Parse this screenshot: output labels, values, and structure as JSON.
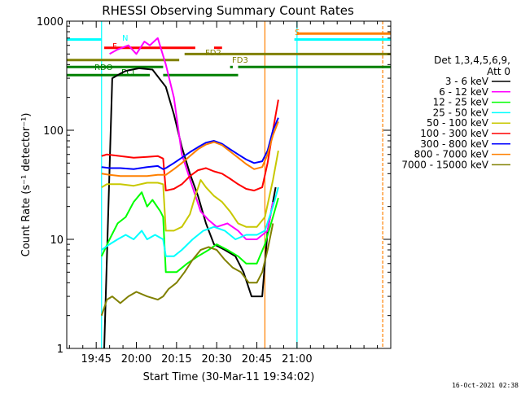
{
  "chart_data": {
    "type": "line",
    "title": "RHESSI Observing Summary Count Rates",
    "xlabel": "Start Time (30-Mar-11 19:34:02)",
    "ylabel": "Count Rate (s⁻¹ detector⁻¹)",
    "y_scale": "log",
    "ylim": [
      1,
      1000
    ],
    "xlim_minutes": [
      0,
      121
    ],
    "x_ticks": [
      {
        "label": "19:45",
        "minute": 11
      },
      {
        "label": "20:00",
        "minute": 26
      },
      {
        "label": "20:15",
        "minute": 41
      },
      {
        "label": "20:30",
        "minute": 56
      },
      {
        "label": "20:45",
        "minute": 71
      },
      {
        "label": "21:00",
        "minute": 86
      }
    ],
    "y_ticks": [
      {
        "label": "1",
        "value": 1
      },
      {
        "label": "10",
        "value": 10
      },
      {
        "label": "100",
        "value": 100
      },
      {
        "label": "1000",
        "value": 1000
      }
    ],
    "legend_header": [
      "Det 1,3,4,5,6,9,",
      "Att 0"
    ],
    "legend_position": "right",
    "grid": false,
    "series": [
      {
        "name": "3 - 6 keV",
        "color": "#000000",
        "points": [
          [
            14,
            1
          ],
          [
            17,
            300
          ],
          [
            20,
            330
          ],
          [
            22,
            350
          ],
          [
            27,
            370
          ],
          [
            32,
            360
          ],
          [
            37,
            250
          ],
          [
            40,
            140
          ],
          [
            43,
            70
          ],
          [
            46,
            40
          ],
          [
            49,
            25
          ],
          [
            52,
            14
          ],
          [
            55,
            9
          ],
          [
            59,
            8
          ],
          [
            63,
            7
          ],
          [
            66,
            5
          ],
          [
            69,
            3
          ],
          [
            73,
            3
          ],
          [
            75,
            12
          ],
          [
            78,
            30
          ]
        ]
      },
      {
        "name": "6 - 12 keV",
        "color": "#ff00ff",
        "points": [
          [
            16,
            500
          ],
          [
            19,
            550
          ],
          [
            23,
            600
          ],
          [
            26,
            500
          ],
          [
            29,
            650
          ],
          [
            31,
            600
          ],
          [
            34,
            700
          ],
          [
            37,
            400
          ],
          [
            40,
            200
          ],
          [
            43,
            60
          ],
          [
            47,
            30
          ],
          [
            50,
            18
          ],
          [
            53,
            15
          ],
          [
            56,
            13
          ],
          [
            60,
            14
          ],
          [
            64,
            12
          ],
          [
            67,
            10
          ],
          [
            71,
            10
          ],
          [
            75,
            12
          ],
          [
            77,
            22
          ]
        ]
      },
      {
        "name": "12 - 25 keV",
        "color": "#00ff00",
        "points": [
          [
            13,
            7
          ],
          [
            16,
            10
          ],
          [
            19,
            14
          ],
          [
            22,
            16
          ],
          [
            25,
            22
          ],
          [
            28,
            27
          ],
          [
            30,
            20
          ],
          [
            32,
            23
          ],
          [
            35,
            18
          ],
          [
            36,
            16
          ],
          [
            37,
            5
          ],
          [
            41,
            5
          ],
          [
            45,
            6
          ],
          [
            49,
            7
          ],
          [
            53,
            8
          ],
          [
            56,
            9
          ],
          [
            60,
            8
          ],
          [
            64,
            7
          ],
          [
            67,
            6
          ],
          [
            71,
            6
          ],
          [
            74,
            9
          ],
          [
            77,
            16
          ],
          [
            79,
            24
          ]
        ]
      },
      {
        "name": "25 - 50 keV",
        "color": "#00ffff",
        "points": [
          [
            13,
            8
          ],
          [
            16,
            9
          ],
          [
            19,
            10
          ],
          [
            22,
            11
          ],
          [
            25,
            10
          ],
          [
            28,
            12
          ],
          [
            30,
            10
          ],
          [
            33,
            11
          ],
          [
            36,
            10
          ],
          [
            37,
            7
          ],
          [
            40,
            7
          ],
          [
            43,
            8
          ],
          [
            47,
            10
          ],
          [
            51,
            12
          ],
          [
            55,
            13
          ],
          [
            59,
            12
          ],
          [
            63,
            10
          ],
          [
            67,
            11
          ],
          [
            71,
            11
          ],
          [
            74,
            12
          ],
          [
            77,
            20
          ],
          [
            79,
            30
          ]
        ]
      },
      {
        "name": "50 - 100 keV",
        "color": "#c8c800",
        "points": [
          [
            13,
            30
          ],
          [
            15,
            32
          ],
          [
            20,
            32
          ],
          [
            25,
            31
          ],
          [
            30,
            33
          ],
          [
            34,
            33
          ],
          [
            36,
            32
          ],
          [
            37,
            12
          ],
          [
            40,
            12
          ],
          [
            43,
            13
          ],
          [
            46,
            17
          ],
          [
            48,
            25
          ],
          [
            50,
            35
          ],
          [
            52,
            30
          ],
          [
            55,
            25
          ],
          [
            58,
            22
          ],
          [
            61,
            18
          ],
          [
            64,
            14
          ],
          [
            67,
            13
          ],
          [
            71,
            13
          ],
          [
            74,
            16
          ],
          [
            77,
            35
          ],
          [
            79,
            65
          ]
        ]
      },
      {
        "name": "100 - 300 keV",
        "color": "#ff0000",
        "points": [
          [
            13,
            58
          ],
          [
            15,
            60
          ],
          [
            20,
            58
          ],
          [
            25,
            56
          ],
          [
            30,
            57
          ],
          [
            34,
            58
          ],
          [
            36,
            55
          ],
          [
            37,
            28
          ],
          [
            40,
            29
          ],
          [
            43,
            32
          ],
          [
            46,
            38
          ],
          [
            49,
            43
          ],
          [
            52,
            45
          ],
          [
            55,
            42
          ],
          [
            58,
            40
          ],
          [
            61,
            36
          ],
          [
            64,
            32
          ],
          [
            67,
            29
          ],
          [
            70,
            28
          ],
          [
            73,
            30
          ],
          [
            75,
            50
          ],
          [
            77,
            100
          ],
          [
            79,
            190
          ]
        ]
      },
      {
        "name": "300 - 800 keV",
        "color": "#0000ff",
        "points": [
          [
            13,
            46
          ],
          [
            16,
            45
          ],
          [
            20,
            45
          ],
          [
            25,
            44
          ],
          [
            30,
            46
          ],
          [
            34,
            47
          ],
          [
            36,
            44
          ],
          [
            37,
            45
          ],
          [
            40,
            50
          ],
          [
            43,
            56
          ],
          [
            46,
            63
          ],
          [
            49,
            70
          ],
          [
            52,
            77
          ],
          [
            55,
            80
          ],
          [
            58,
            75
          ],
          [
            61,
            67
          ],
          [
            64,
            60
          ],
          [
            67,
            54
          ],
          [
            70,
            50
          ],
          [
            73,
            52
          ],
          [
            75,
            65
          ],
          [
            77,
            100
          ],
          [
            79,
            130
          ]
        ]
      },
      {
        "name": "800 - 7000 keV",
        "color": "#ff8000",
        "points": [
          [
            13,
            40
          ],
          [
            16,
            39
          ],
          [
            20,
            38
          ],
          [
            25,
            38
          ],
          [
            30,
            38
          ],
          [
            34,
            39
          ],
          [
            37,
            39
          ],
          [
            40,
            44
          ],
          [
            43,
            50
          ],
          [
            46,
            58
          ],
          [
            49,
            67
          ],
          [
            52,
            74
          ],
          [
            55,
            78
          ],
          [
            58,
            73
          ],
          [
            61,
            64
          ],
          [
            64,
            56
          ],
          [
            67,
            49
          ],
          [
            70,
            44
          ],
          [
            73,
            46
          ],
          [
            75,
            60
          ],
          [
            77,
            90
          ],
          [
            79,
            120
          ]
        ]
      },
      {
        "name": "7000 - 15000 keV",
        "color": "#808000",
        "points": [
          [
            13,
            2
          ],
          [
            15,
            2.8
          ],
          [
            17,
            3
          ],
          [
            20,
            2.6
          ],
          [
            23,
            3
          ],
          [
            26,
            3.3
          ],
          [
            30,
            3
          ],
          [
            34,
            2.8
          ],
          [
            36,
            3
          ],
          [
            38,
            3.5
          ],
          [
            41,
            4
          ],
          [
            44,
            5
          ],
          [
            47,
            6.5
          ],
          [
            50,
            8
          ],
          [
            53,
            8.5
          ],
          [
            56,
            8
          ],
          [
            59,
            6.5
          ],
          [
            62,
            5.5
          ],
          [
            65,
            5
          ],
          [
            68,
            4
          ],
          [
            71,
            4
          ],
          [
            73,
            5
          ],
          [
            75,
            8
          ],
          [
            77,
            14
          ]
        ]
      }
    ],
    "flag_bars": [
      {
        "label": "N",
        "color": "#00ffff",
        "y": 680,
        "segments": [
          [
            0,
            13
          ],
          [
            85,
            121
          ]
        ]
      },
      {
        "label": "S",
        "color": "#ff8000",
        "y": 770,
        "segments": [
          [
            86,
            121
          ]
        ]
      },
      {
        "label": "F",
        "color": "#ff0000",
        "y": 570,
        "segments": [
          [
            14,
            48
          ],
          [
            55,
            58
          ]
        ]
      },
      {
        "label": "FD2",
        "color": "#808000",
        "y": 500,
        "segments": [
          [
            44,
            121
          ]
        ]
      },
      {
        "label": "FD3",
        "color": "#808000",
        "y": 440,
        "segments": [
          [
            0,
            42
          ]
        ]
      },
      {
        "label": "RDO",
        "color": "#008000",
        "y": 380,
        "segments": [
          [
            0,
            36
          ],
          [
            61,
            62
          ],
          [
            64,
            121
          ]
        ]
      },
      {
        "label": "ECL",
        "color": "#008000",
        "y": 320,
        "segments": [
          [
            0,
            31
          ],
          [
            36,
            64
          ]
        ]
      }
    ],
    "vlines": [
      {
        "color": "#00ffff",
        "minute": 13
      },
      {
        "color": "#00ffff",
        "minute": 86
      },
      {
        "color": "#ff8000",
        "minute": 74
      },
      {
        "color": "#ff8000",
        "minute": 118
      }
    ],
    "timestamp": "16-Oct-2021 02:38"
  }
}
